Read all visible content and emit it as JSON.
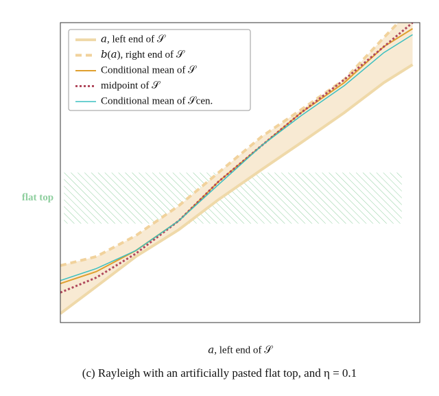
{
  "chart_data": {
    "type": "line",
    "x": [
      0,
      0.1,
      0.21,
      0.33,
      0.44,
      0.56,
      0.67,
      0.79,
      0.9,
      0.98
    ],
    "xlim": [
      0,
      1
    ],
    "ylim": [
      0,
      1
    ],
    "xlabel": "𝑎, left end of 𝒮",
    "caption": "(c) Rayleigh with an artificially pasted flat top, and η = 0.1",
    "band_color": "#f8ead3",
    "series": [
      {
        "name": "𝑎, left end of 𝒮",
        "color": "#efd9a9",
        "style": "solid",
        "width": 4,
        "values": [
          0.03,
          0.12,
          0.22,
          0.31,
          0.41,
          0.51,
          0.6,
          0.7,
          0.8,
          0.86
        ]
      },
      {
        "name": "𝑏(𝑎), right end of 𝒮",
        "color": "#f1d29c",
        "style": "dashed",
        "width": 4,
        "values": [
          0.19,
          0.22,
          0.29,
          0.39,
          0.5,
          0.62,
          0.71,
          0.81,
          0.95,
          1.05
        ]
      },
      {
        "name": "Conditional mean of 𝒮",
        "color": "#df9f2e",
        "style": "solid",
        "width": 2,
        "values": [
          0.13,
          0.17,
          0.24,
          0.34,
          0.47,
          0.59,
          0.7,
          0.8,
          0.92,
          0.98
        ]
      },
      {
        "name": "midpoint of 𝒮",
        "color": "#b0485c",
        "style": "dotted",
        "width": 3,
        "values": [
          0.1,
          0.15,
          0.23,
          0.34,
          0.47,
          0.59,
          0.7,
          0.81,
          0.92,
          1.0
        ]
      },
      {
        "name": "Conditional mean of 𝒮cen.",
        "color": "#3bbfc0",
        "style": "solid",
        "width": 1.5,
        "values": [
          0.14,
          0.18,
          0.24,
          0.34,
          0.46,
          0.59,
          0.69,
          0.79,
          0.9,
          0.96
        ]
      }
    ],
    "flat_top": {
      "label": "flat top",
      "color": "#8fcf9f",
      "xlim": [
        0.01,
        0.95
      ],
      "ylim": [
        0.33,
        0.5
      ]
    }
  }
}
